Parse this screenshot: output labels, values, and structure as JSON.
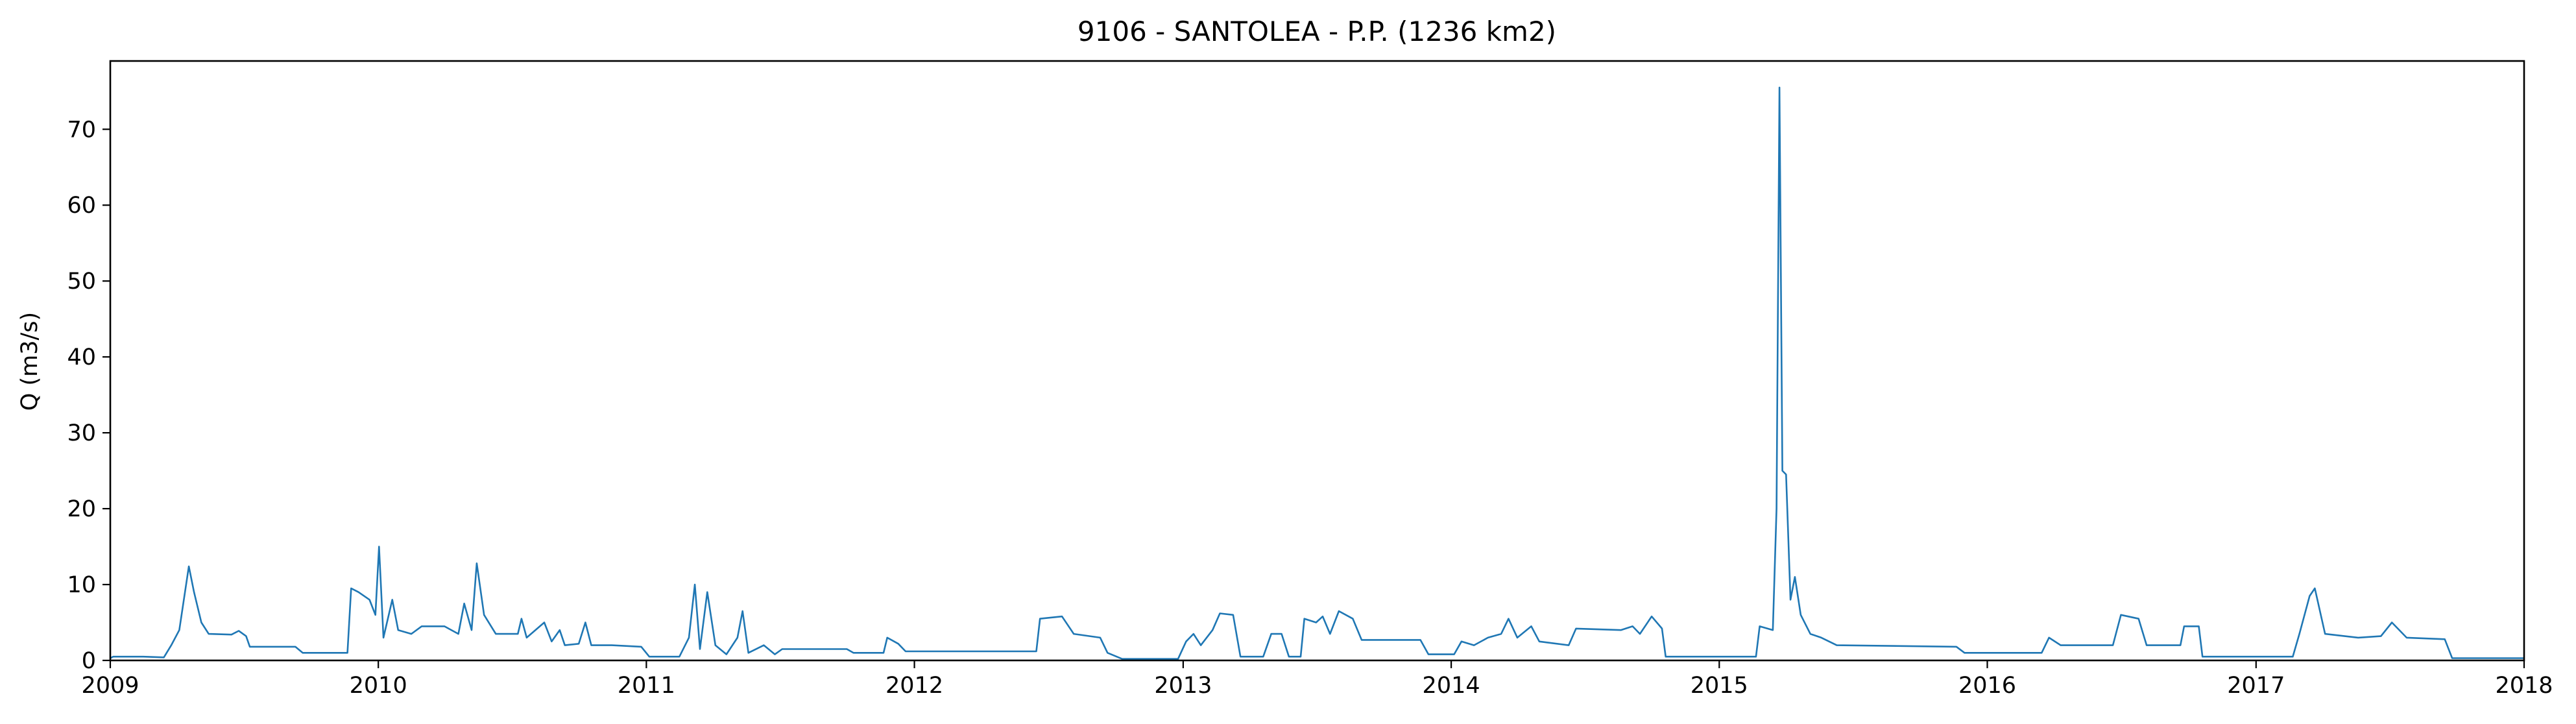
{
  "chart_data": {
    "type": "line",
    "title": "9106 - SANTOLEA - P.P. (1236 km2)",
    "xlabel": "",
    "ylabel": "Q (m3/s)",
    "xlim": [
      "2009-01-01",
      "2018-01-01"
    ],
    "ylim": [
      0,
      79
    ],
    "grid": false,
    "x_ticks": [
      "2009",
      "2010",
      "2011",
      "2012",
      "2013",
      "2014",
      "2015",
      "2016",
      "2017",
      "2018"
    ],
    "y_ticks": [
      0,
      10,
      20,
      30,
      40,
      50,
      60,
      70
    ],
    "series": [
      {
        "color": "#1f77b4",
        "points": [
          [
            "2009-01-01",
            0.3
          ],
          [
            "2009-01-05",
            0.5
          ],
          [
            "2009-02-15",
            0.5
          ],
          [
            "2009-03-15",
            0.4
          ],
          [
            "2009-03-25",
            2.0
          ],
          [
            "2009-04-05",
            4.0
          ],
          [
            "2009-04-18",
            12.4
          ],
          [
            "2009-04-25",
            9.0
          ],
          [
            "2009-05-05",
            5.0
          ],
          [
            "2009-05-15",
            3.5
          ],
          [
            "2009-06-15",
            3.4
          ],
          [
            "2009-06-25",
            3.9
          ],
          [
            "2009-07-05",
            3.2
          ],
          [
            "2009-07-10",
            1.8
          ],
          [
            "2009-09-10",
            1.8
          ],
          [
            "2009-09-20",
            1.0
          ],
          [
            "2009-11-20",
            1.0
          ],
          [
            "2009-11-25",
            9.5
          ],
          [
            "2009-12-05",
            9.0
          ],
          [
            "2009-12-20",
            8.0
          ],
          [
            "2009-12-28",
            6.0
          ],
          [
            "2010-01-02",
            15.0
          ],
          [
            "2010-01-08",
            3.0
          ],
          [
            "2010-01-20",
            8.0
          ],
          [
            "2010-01-28",
            4.0
          ],
          [
            "2010-02-15",
            3.5
          ],
          [
            "2010-03-01",
            4.5
          ],
          [
            "2010-04-01",
            4.5
          ],
          [
            "2010-04-20",
            3.5
          ],
          [
            "2010-04-28",
            7.5
          ],
          [
            "2010-05-08",
            4.0
          ],
          [
            "2010-05-15",
            12.8
          ],
          [
            "2010-05-25",
            6.0
          ],
          [
            "2010-06-10",
            3.5
          ],
          [
            "2010-07-10",
            3.5
          ],
          [
            "2010-07-15",
            5.5
          ],
          [
            "2010-07-22",
            3.0
          ],
          [
            "2010-08-15",
            5.0
          ],
          [
            "2010-08-25",
            2.5
          ],
          [
            "2010-09-05",
            4.0
          ],
          [
            "2010-09-12",
            2.0
          ],
          [
            "2010-10-01",
            2.2
          ],
          [
            "2010-10-10",
            5.0
          ],
          [
            "2010-10-18",
            2.0
          ],
          [
            "2010-11-15",
            2.0
          ],
          [
            "2010-12-25",
            1.8
          ],
          [
            "2011-01-05",
            0.5
          ],
          [
            "2011-02-15",
            0.5
          ],
          [
            "2011-02-28",
            3.0
          ],
          [
            "2011-03-08",
            10.0
          ],
          [
            "2011-03-15",
            1.5
          ],
          [
            "2011-03-25",
            9.0
          ],
          [
            "2011-04-05",
            2.0
          ],
          [
            "2011-04-20",
            0.8
          ],
          [
            "2011-05-05",
            3.0
          ],
          [
            "2011-05-12",
            6.5
          ],
          [
            "2011-05-20",
            1.0
          ],
          [
            "2011-06-10",
            2.0
          ],
          [
            "2011-06-25",
            0.8
          ],
          [
            "2011-07-05",
            1.5
          ],
          [
            "2011-10-01",
            1.5
          ],
          [
            "2011-10-10",
            1.0
          ],
          [
            "2011-11-20",
            1.0
          ],
          [
            "2011-11-25",
            3.0
          ],
          [
            "2011-12-10",
            2.2
          ],
          [
            "2011-12-20",
            1.2
          ],
          [
            "2012-06-15",
            1.2
          ],
          [
            "2012-06-20",
            5.5
          ],
          [
            "2012-07-20",
            5.8
          ],
          [
            "2012-08-05",
            3.5
          ],
          [
            "2012-09-10",
            3.0
          ],
          [
            "2012-09-20",
            1.0
          ],
          [
            "2012-10-10",
            0.2
          ],
          [
            "2012-12-25",
            0.2
          ],
          [
            "2013-01-05",
            2.5
          ],
          [
            "2013-01-15",
            3.5
          ],
          [
            "2013-01-25",
            2.0
          ],
          [
            "2013-02-10",
            4.0
          ],
          [
            "2013-02-20",
            6.2
          ],
          [
            "2013-03-10",
            6.0
          ],
          [
            "2013-03-20",
            0.5
          ],
          [
            "2013-04-20",
            0.5
          ],
          [
            "2013-05-01",
            3.5
          ],
          [
            "2013-05-15",
            3.5
          ],
          [
            "2013-05-25",
            0.5
          ],
          [
            "2013-06-10",
            0.5
          ],
          [
            "2013-06-15",
            5.5
          ],
          [
            "2013-07-01",
            5.0
          ],
          [
            "2013-07-10",
            5.8
          ],
          [
            "2013-07-20",
            3.5
          ],
          [
            "2013-08-01",
            6.5
          ],
          [
            "2013-08-20",
            5.5
          ],
          [
            "2013-09-01",
            2.7
          ],
          [
            "2013-11-20",
            2.7
          ],
          [
            "2013-12-01",
            0.8
          ],
          [
            "2014-01-05",
            0.8
          ],
          [
            "2014-01-15",
            2.5
          ],
          [
            "2014-02-01",
            2.0
          ],
          [
            "2014-02-20",
            3.0
          ],
          [
            "2014-03-10",
            3.5
          ],
          [
            "2014-03-20",
            5.5
          ],
          [
            "2014-04-01",
            3.0
          ],
          [
            "2014-04-20",
            4.5
          ],
          [
            "2014-05-01",
            2.5
          ],
          [
            "2014-06-10",
            2.0
          ],
          [
            "2014-06-20",
            4.2
          ],
          [
            "2014-08-20",
            4.0
          ],
          [
            "2014-09-05",
            4.5
          ],
          [
            "2014-09-15",
            3.5
          ],
          [
            "2014-10-01",
            5.8
          ],
          [
            "2014-10-15",
            4.2
          ],
          [
            "2014-10-20",
            0.5
          ],
          [
            "2015-02-20",
            0.5
          ],
          [
            "2015-02-25",
            4.5
          ],
          [
            "2015-03-15",
            4.0
          ],
          [
            "2015-03-20",
            20.0
          ],
          [
            "2015-03-24",
            75.5
          ],
          [
            "2015-03-28",
            25.0
          ],
          [
            "2015-04-02",
            24.5
          ],
          [
            "2015-04-08",
            8.0
          ],
          [
            "2015-04-14",
            11.0
          ],
          [
            "2015-04-22",
            6.0
          ],
          [
            "2015-05-05",
            3.5
          ],
          [
            "2015-05-20",
            3.0
          ],
          [
            "2015-06-10",
            2.0
          ],
          [
            "2015-11-20",
            1.8
          ],
          [
            "2015-12-01",
            1.0
          ],
          [
            "2016-03-15",
            1.0
          ],
          [
            "2016-03-25",
            3.0
          ],
          [
            "2016-04-10",
            2.0
          ],
          [
            "2016-06-20",
            2.0
          ],
          [
            "2016-07-01",
            6.0
          ],
          [
            "2016-07-25",
            5.5
          ],
          [
            "2016-08-05",
            2.0
          ],
          [
            "2016-09-20",
            2.0
          ],
          [
            "2016-09-25",
            4.5
          ],
          [
            "2016-10-15",
            4.5
          ],
          [
            "2016-10-20",
            0.5
          ],
          [
            "2017-02-20",
            0.5
          ],
          [
            "2017-03-01",
            3.5
          ],
          [
            "2017-03-15",
            8.5
          ],
          [
            "2017-03-22",
            9.5
          ],
          [
            "2017-04-05",
            3.5
          ],
          [
            "2017-05-20",
            3.0
          ],
          [
            "2017-06-20",
            3.2
          ],
          [
            "2017-07-05",
            5.0
          ],
          [
            "2017-07-25",
            3.0
          ],
          [
            "2017-09-15",
            2.8
          ],
          [
            "2017-09-25",
            0.3
          ],
          [
            "2017-12-31",
            0.3
          ]
        ]
      }
    ]
  }
}
